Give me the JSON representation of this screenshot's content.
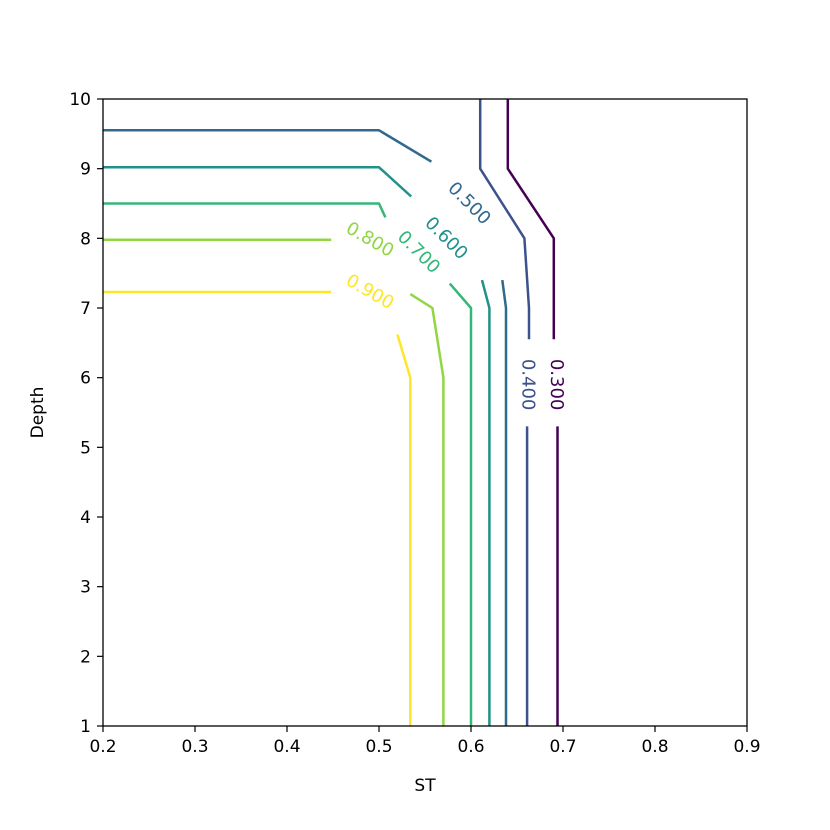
{
  "chart_data": {
    "type": "contour",
    "xlabel": "ST",
    "ylabel": "Depth",
    "xlim": [
      0.2,
      0.9
    ],
    "ylim": [
      1,
      10
    ],
    "x_ticks": [
      "0.2",
      "0.3",
      "0.4",
      "0.5",
      "0.6",
      "0.7",
      "0.8",
      "0.9"
    ],
    "y_ticks": [
      "1",
      "2",
      "3",
      "4",
      "5",
      "6",
      "7",
      "8",
      "9",
      "10"
    ],
    "grid": false,
    "levels": [
      {
        "level": "0.300",
        "color": "#440154",
        "segments": [
          [
            [
              0.64,
              10
            ],
            [
              0.64,
              9
            ],
            [
              0.69,
              8
            ],
            [
              0.69,
              7
            ],
            [
              0.69,
              6.55
            ]
          ],
          [
            [
              0.694,
              5.3
            ],
            [
              0.694,
              1
            ]
          ]
        ],
        "label_at": [
          0.693,
          5.9
        ],
        "label_angle": 90
      },
      {
        "level": "0.400",
        "color": "#3b528b",
        "segments": [
          [
            [
              0.61,
              10
            ],
            [
              0.61,
              9
            ],
            [
              0.658,
              8
            ],
            [
              0.663,
              7
            ],
            [
              0.663,
              6.55
            ]
          ],
          [
            [
              0.661,
              5.3
            ],
            [
              0.661,
              1
            ]
          ]
        ],
        "label_at": [
          0.662,
          5.9
        ],
        "label_angle": 90
      },
      {
        "level": "0.500",
        "color": "#31688e",
        "segments": [
          [
            [
              0.2,
              9.55
            ],
            [
              0.5,
              9.55
            ],
            [
              0.557,
              9.1
            ]
          ],
          [
            [
              0.634,
              7.4
            ],
            [
              0.638,
              7
            ],
            [
              0.638,
              1
            ]
          ]
        ],
        "label_at": [
          0.598,
          8.5
        ],
        "label_angle": 45
      },
      {
        "level": "0.600",
        "color": "#21918c",
        "segments": [
          [
            [
              0.2,
              9.02
            ],
            [
              0.5,
              9.02
            ],
            [
              0.535,
              8.6
            ]
          ],
          [
            [
              0.612,
              7.4
            ],
            [
              0.62,
              7
            ],
            [
              0.62,
              1
            ]
          ]
        ],
        "label_at": [
          0.573,
          8.0
        ],
        "label_angle": 45
      },
      {
        "level": "0.700",
        "color": "#35b779",
        "segments": [
          [
            [
              0.2,
              8.5
            ],
            [
              0.5,
              8.5
            ],
            [
              0.507,
              8.3
            ]
          ],
          [
            [
              0.577,
              7.35
            ],
            [
              0.6,
              7
            ],
            [
              0.6,
              1
            ]
          ]
        ],
        "label_at": [
          0.543,
          7.8
        ],
        "label_angle": 45
      },
      {
        "level": "0.800",
        "color": "#90d743",
        "segments": [
          [
            [
              0.2,
              7.98
            ],
            [
              0.448,
              7.98
            ]
          ],
          [
            [
              0.534,
              7.2
            ],
            [
              0.558,
              7
            ],
            [
              0.57,
              6
            ],
            [
              0.57,
              1
            ]
          ]
        ],
        "label_at": [
          0.49,
          7.98
        ],
        "label_angle": 30
      },
      {
        "level": "0.900",
        "color": "#fde725",
        "segments": [
          [
            [
              0.2,
              7.23
            ],
            [
              0.448,
              7.23
            ]
          ],
          [
            [
              0.52,
              6.62
            ],
            [
              0.534,
              6
            ],
            [
              0.534,
              1
            ]
          ]
        ],
        "label_at": [
          0.49,
          7.23
        ],
        "label_angle": 30
      }
    ]
  }
}
